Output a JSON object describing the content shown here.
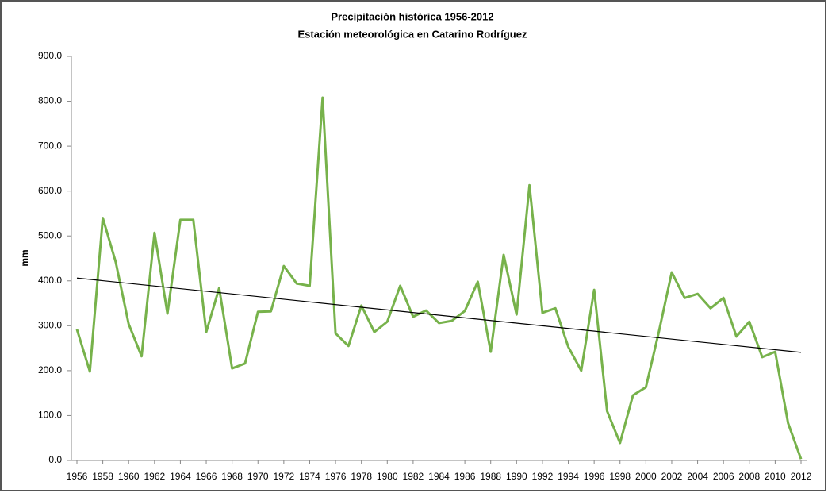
{
  "chart_data": {
    "type": "line",
    "title": "Precipitación histórica 1956-2012",
    "subtitle": "Estación meteorológica en Catarino Rodríguez",
    "y_label": "mm",
    "x": [
      1956,
      1957,
      1958,
      1959,
      1960,
      1961,
      1962,
      1963,
      1964,
      1965,
      1966,
      1967,
      1968,
      1969,
      1970,
      1971,
      1972,
      1973,
      1974,
      1975,
      1976,
      1977,
      1978,
      1979,
      1980,
      1981,
      1982,
      1983,
      1984,
      1985,
      1986,
      1987,
      1988,
      1989,
      1990,
      1991,
      1992,
      1993,
      1994,
      1995,
      1996,
      1997,
      1998,
      1999,
      2000,
      2001,
      2002,
      2003,
      2004,
      2005,
      2006,
      2007,
      2008,
      2009,
      2010,
      2011,
      2012
    ],
    "series": [
      {
        "color": "#77b24b",
        "values": [
          292,
          198,
          540,
          442,
          304,
          232,
          507,
          327,
          536,
          536,
          286,
          384,
          205,
          216,
          331,
          332,
          433,
          394,
          389,
          808,
          283,
          255,
          345,
          286,
          309,
          389,
          320,
          334,
          306,
          311,
          333,
          398,
          242,
          458,
          325,
          613,
          329,
          339,
          253,
          200,
          380,
          110,
          39,
          145,
          163,
          286,
          419,
          362,
          371,
          339,
          362,
          276,
          309,
          230,
          242,
          83,
          3
        ]
      }
    ],
    "trendline": {
      "color": "#000000"
    },
    "xlim": [
      1956,
      2012
    ],
    "xticks": [
      1956,
      1958,
      1960,
      1962,
      1964,
      1966,
      1968,
      1970,
      1972,
      1974,
      1976,
      1978,
      1980,
      1982,
      1984,
      1986,
      1988,
      1990,
      1992,
      1994,
      1996,
      1998,
      2000,
      2002,
      2004,
      2006,
      2008,
      2010,
      2012
    ],
    "ylim": [
      0,
      900
    ],
    "yticks": [
      {
        "value": 0,
        "label": "0.0"
      },
      {
        "value": 100,
        "label": "100.0"
      },
      {
        "value": 200,
        "label": "200.0"
      },
      {
        "value": 300,
        "label": "300.0"
      },
      {
        "value": 400,
        "label": "400.0"
      },
      {
        "value": 500,
        "label": "500.0"
      },
      {
        "value": 600,
        "label": "600.0"
      },
      {
        "value": 700,
        "label": "700.0"
      },
      {
        "value": 800,
        "label": "800.0"
      },
      {
        "value": 900,
        "label": "900.0"
      }
    ],
    "grid": false
  }
}
